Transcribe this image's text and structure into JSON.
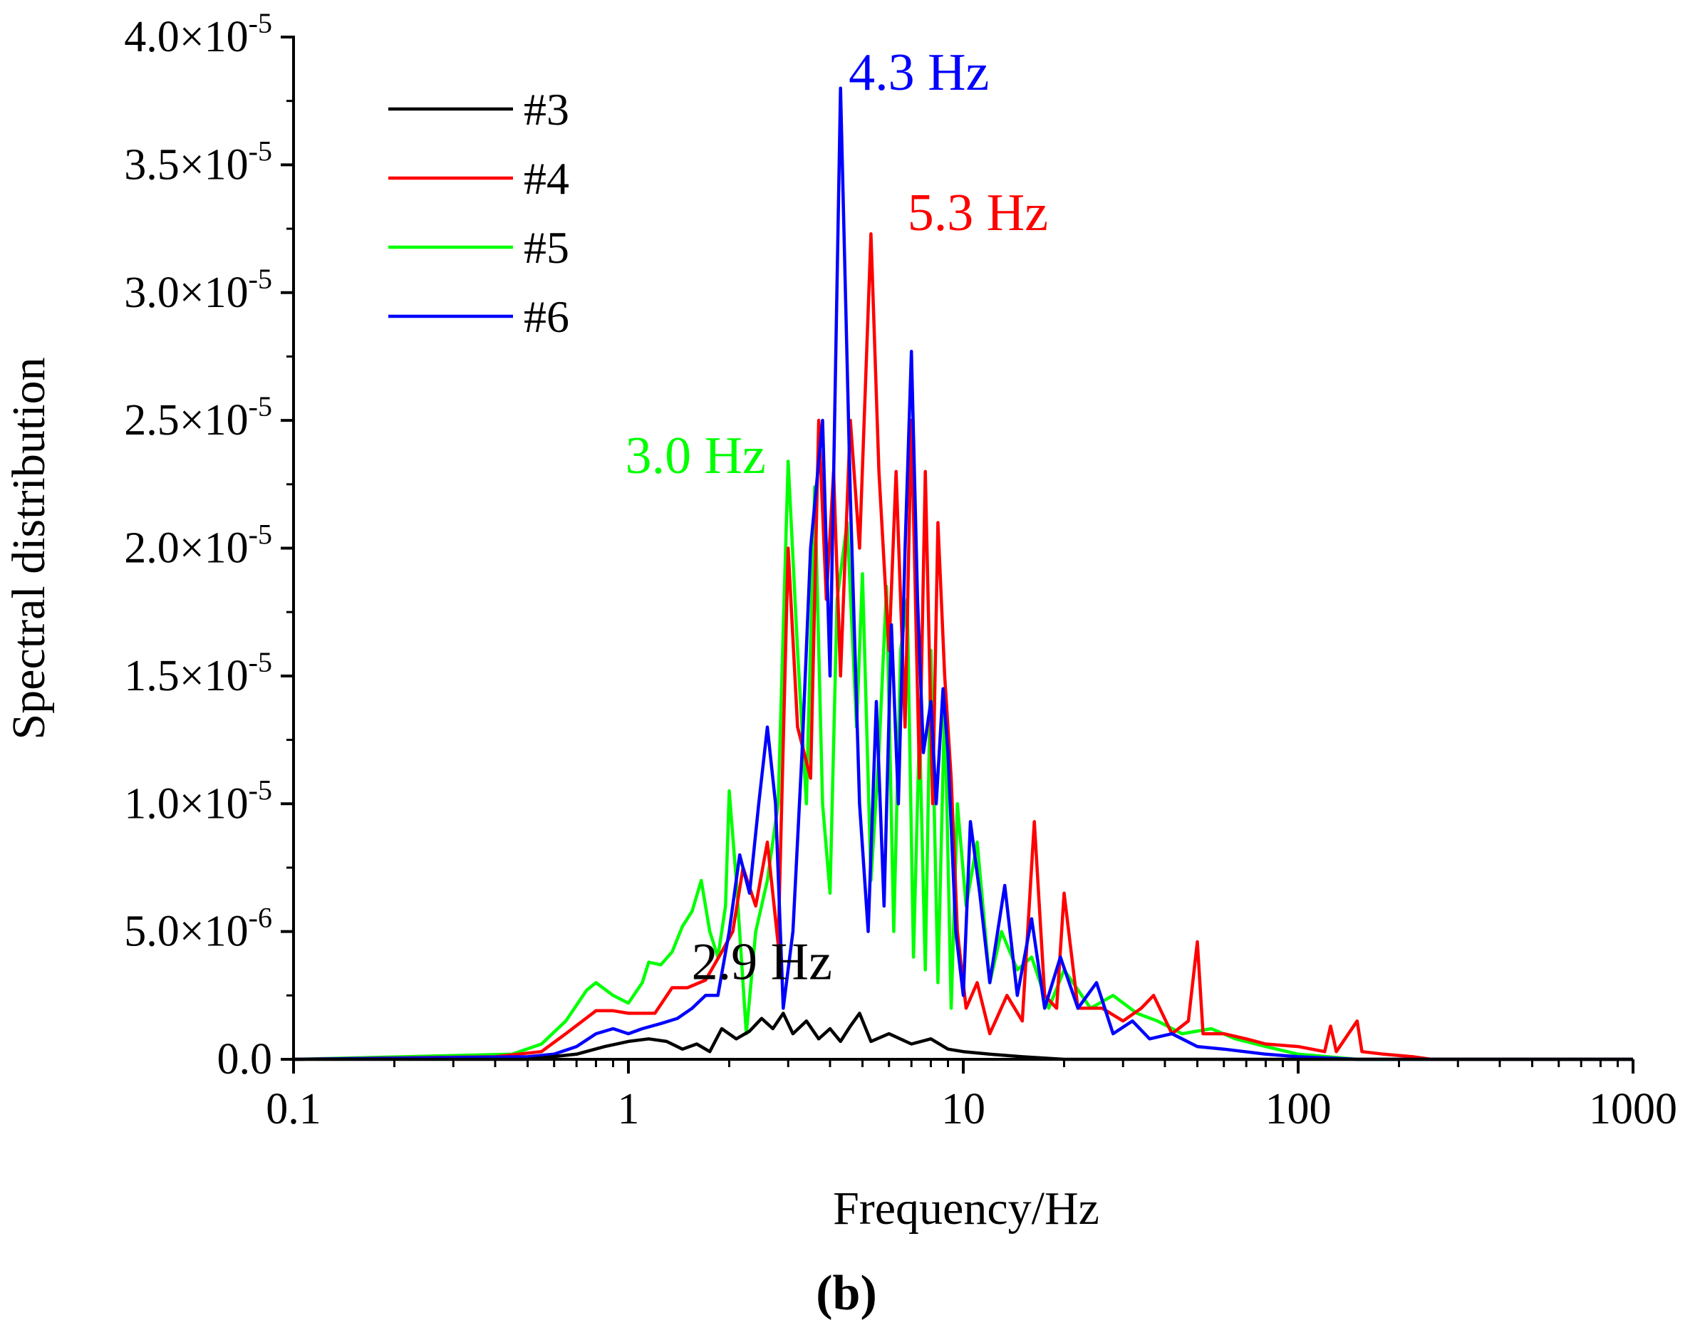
{
  "chart_data": {
    "type": "line",
    "title": "",
    "xlabel": "Frequency/Hz",
    "ylabel": "Spectral distribution",
    "xscale": "log",
    "xlim": [
      0.1,
      1000
    ],
    "ylim": [
      0,
      4e-05
    ],
    "x_ticks": [
      0.1,
      1,
      10,
      100,
      1000
    ],
    "x_tick_labels": [
      "0.1",
      "1",
      "10",
      "100",
      "1000"
    ],
    "y_ticks": [
      0,
      5e-06,
      1e-05,
      1.5e-05,
      2e-05,
      2.5e-05,
      3e-05,
      3.5e-05,
      4e-05
    ],
    "y_tick_labels": [
      {
        "mant": "0.0",
        "exp": ""
      },
      {
        "mant": "5.0×10",
        "exp": "-6"
      },
      {
        "mant": "1.0×10",
        "exp": "-5"
      },
      {
        "mant": "1.5×10",
        "exp": "-5"
      },
      {
        "mant": "2.0×10",
        "exp": "-5"
      },
      {
        "mant": "2.5×10",
        "exp": "-5"
      },
      {
        "mant": "3.0×10",
        "exp": "-5"
      },
      {
        "mant": "3.5×10",
        "exp": "-5"
      },
      {
        "mant": "4.0×10",
        "exp": "-5"
      }
    ],
    "grid": false,
    "legend_position": "top-left",
    "series": [
      {
        "name": "#3",
        "color": "#000000",
        "points": [
          [
            0.1,
            0
          ],
          [
            0.5,
            0
          ],
          [
            0.7,
            2e-07
          ],
          [
            0.85,
            5e-07
          ],
          [
            1.0,
            7e-07
          ],
          [
            1.15,
            8e-07
          ],
          [
            1.3,
            7e-07
          ],
          [
            1.45,
            4e-07
          ],
          [
            1.6,
            6e-07
          ],
          [
            1.75,
            3e-07
          ],
          [
            1.9,
            1.2e-06
          ],
          [
            2.1,
            8e-07
          ],
          [
            2.3,
            1.1e-06
          ],
          [
            2.5,
            1.6e-06
          ],
          [
            2.7,
            1.2e-06
          ],
          [
            2.9,
            1.8e-06
          ],
          [
            3.1,
            1e-06
          ],
          [
            3.4,
            1.5e-06
          ],
          [
            3.7,
            8e-07
          ],
          [
            4.0,
            1.2e-06
          ],
          [
            4.3,
            7e-07
          ],
          [
            4.6,
            1.3e-06
          ],
          [
            4.9,
            1.8e-06
          ],
          [
            5.3,
            7e-07
          ],
          [
            6.0,
            1e-06
          ],
          [
            7.0,
            6e-07
          ],
          [
            8.0,
            8e-07
          ],
          [
            9.0,
            4e-07
          ],
          [
            10,
            3e-07
          ],
          [
            12,
            2e-07
          ],
          [
            15,
            1e-07
          ],
          [
            20,
            0
          ],
          [
            1000,
            0
          ]
        ],
        "peak_annotation": "2.9 Hz"
      },
      {
        "name": "#4",
        "color": "#ff0000",
        "points": [
          [
            0.1,
            0
          ],
          [
            0.4,
            1e-07
          ],
          [
            0.55,
            3e-07
          ],
          [
            0.65,
            1e-06
          ],
          [
            0.8,
            1.9e-06
          ],
          [
            0.9,
            1.9e-06
          ],
          [
            1.0,
            1.8e-06
          ],
          [
            1.2,
            1.8e-06
          ],
          [
            1.35,
            2.8e-06
          ],
          [
            1.5,
            2.8e-06
          ],
          [
            1.7,
            3.1e-06
          ],
          [
            1.9,
            4.2e-06
          ],
          [
            2.05,
            5e-06
          ],
          [
            2.2,
            7.5e-06
          ],
          [
            2.4,
            6e-06
          ],
          [
            2.6,
            8.5e-06
          ],
          [
            2.8,
            4.5e-06
          ],
          [
            3.0,
            2e-05
          ],
          [
            3.2,
            1.3e-05
          ],
          [
            3.5,
            1.1e-05
          ],
          [
            3.7,
            2.5e-05
          ],
          [
            3.9,
            1.8e-05
          ],
          [
            4.1,
            2.3e-05
          ],
          [
            4.3,
            1.5e-05
          ],
          [
            4.6,
            2.5e-05
          ],
          [
            4.9,
            2e-05
          ],
          [
            5.3,
            3.23e-05
          ],
          [
            5.6,
            2.3e-05
          ],
          [
            6.0,
            1.6e-05
          ],
          [
            6.3,
            2.3e-05
          ],
          [
            6.7,
            1.3e-05
          ],
          [
            7.0,
            2.5e-05
          ],
          [
            7.4,
            1.1e-05
          ],
          [
            7.7,
            2.3e-05
          ],
          [
            8.1,
            1e-05
          ],
          [
            8.4,
            2.1e-05
          ],
          [
            8.8,
            1.5e-05
          ],
          [
            9.2,
            1.1e-05
          ],
          [
            9.6,
            5e-06
          ],
          [
            10.2,
            2e-06
          ],
          [
            11,
            3e-06
          ],
          [
            12,
            1e-06
          ],
          [
            13.5,
            2.5e-06
          ],
          [
            15,
            1.5e-06
          ],
          [
            16.3,
            9.3e-06
          ],
          [
            17.5,
            2.5e-06
          ],
          [
            19,
            2e-06
          ],
          [
            20,
            6.5e-06
          ],
          [
            22,
            2e-06
          ],
          [
            26,
            2e-06
          ],
          [
            30,
            1.5e-06
          ],
          [
            34,
            2e-06
          ],
          [
            37,
            2.5e-06
          ],
          [
            42,
            1e-06
          ],
          [
            47,
            1.5e-06
          ],
          [
            50,
            4.6e-06
          ],
          [
            52,
            1e-06
          ],
          [
            60,
            1e-06
          ],
          [
            70,
            8e-07
          ],
          [
            80,
            6e-07
          ],
          [
            100,
            5e-07
          ],
          [
            120,
            3e-07
          ],
          [
            125,
            1.3e-06
          ],
          [
            130,
            3e-07
          ],
          [
            150,
            1.5e-06
          ],
          [
            155,
            3e-07
          ],
          [
            180,
            2e-07
          ],
          [
            220,
            1e-07
          ],
          [
            250,
            0
          ],
          [
            1000,
            0
          ]
        ],
        "peak_annotation": "5.3 Hz"
      },
      {
        "name": "#5",
        "color": "#00ff00",
        "points": [
          [
            0.1,
            0
          ],
          [
            0.45,
            2e-07
          ],
          [
            0.55,
            6e-07
          ],
          [
            0.65,
            1.5e-06
          ],
          [
            0.75,
            2.7e-06
          ],
          [
            0.8,
            3e-06
          ],
          [
            0.9,
            2.5e-06
          ],
          [
            1.0,
            2.2e-06
          ],
          [
            1.1,
            3e-06
          ],
          [
            1.15,
            3.8e-06
          ],
          [
            1.25,
            3.7e-06
          ],
          [
            1.35,
            4.2e-06
          ],
          [
            1.45,
            5.2e-06
          ],
          [
            1.55,
            5.8e-06
          ],
          [
            1.65,
            7e-06
          ],
          [
            1.75,
            5e-06
          ],
          [
            1.85,
            4e-06
          ],
          [
            1.95,
            6e-06
          ],
          [
            2.0,
            1.05e-05
          ],
          [
            2.1,
            7e-06
          ],
          [
            2.25,
            1e-06
          ],
          [
            2.4,
            5e-06
          ],
          [
            2.6,
            7e-06
          ],
          [
            2.8,
            1e-05
          ],
          [
            3.0,
            2.34e-05
          ],
          [
            3.2,
            1.6e-05
          ],
          [
            3.4,
            1e-05
          ],
          [
            3.6,
            2.24e-05
          ],
          [
            3.8,
            1e-05
          ],
          [
            4.0,
            6.5e-06
          ],
          [
            4.2,
            1.8e-05
          ],
          [
            4.5,
            2.1e-05
          ],
          [
            4.8,
            1.3e-05
          ],
          [
            5.0,
            1.9e-05
          ],
          [
            5.3,
            7e-06
          ],
          [
            5.6,
            1.2e-05
          ],
          [
            5.9,
            1.85e-05
          ],
          [
            6.2,
            5e-06
          ],
          [
            6.5,
            1.6e-05
          ],
          [
            6.8,
            1.8e-05
          ],
          [
            7.1,
            4e-06
          ],
          [
            7.4,
            1.3e-05
          ],
          [
            7.7,
            3.5e-06
          ],
          [
            8.0,
            1.6e-05
          ],
          [
            8.4,
            3e-06
          ],
          [
            8.8,
            1.4e-05
          ],
          [
            9.2,
            2e-06
          ],
          [
            9.6,
            1e-05
          ],
          [
            10.2,
            6e-06
          ],
          [
            11,
            8.5e-06
          ],
          [
            12,
            3e-06
          ],
          [
            13,
            5e-06
          ],
          [
            14.5,
            3.5e-06
          ],
          [
            16,
            4e-06
          ],
          [
            18,
            2e-06
          ],
          [
            20,
            3.5e-06
          ],
          [
            24,
            2e-06
          ],
          [
            28,
            2.5e-06
          ],
          [
            33,
            1.8e-06
          ],
          [
            38,
            1.5e-06
          ],
          [
            45,
            1e-06
          ],
          [
            55,
            1.2e-06
          ],
          [
            65,
            8e-07
          ],
          [
            80,
            5e-07
          ],
          [
            100,
            2e-07
          ],
          [
            150,
            0
          ],
          [
            1000,
            0
          ]
        ],
        "peak_annotation": "3.0 Hz"
      },
      {
        "name": "#6",
        "color": "#0000ff",
        "points": [
          [
            0.1,
            0
          ],
          [
            0.5,
            1e-07
          ],
          [
            0.6,
            2e-07
          ],
          [
            0.7,
            5e-07
          ],
          [
            0.8,
            1e-06
          ],
          [
            0.9,
            1.2e-06
          ],
          [
            1.0,
            1e-06
          ],
          [
            1.1,
            1.2e-06
          ],
          [
            1.25,
            1.4e-06
          ],
          [
            1.4,
            1.6e-06
          ],
          [
            1.55,
            2e-06
          ],
          [
            1.7,
            2.5e-06
          ],
          [
            1.85,
            2.5e-06
          ],
          [
            2.0,
            5e-06
          ],
          [
            2.15,
            8e-06
          ],
          [
            2.3,
            6.5e-06
          ],
          [
            2.45,
            1e-05
          ],
          [
            2.6,
            1.3e-05
          ],
          [
            2.75,
            1e-05
          ],
          [
            2.9,
            2e-06
          ],
          [
            3.1,
            5e-06
          ],
          [
            3.3,
            1.2e-05
          ],
          [
            3.5,
            2e-05
          ],
          [
            3.8,
            2.5e-05
          ],
          [
            4.0,
            1.5e-05
          ],
          [
            4.3,
            3.8e-05
          ],
          [
            4.6,
            2.2e-05
          ],
          [
            4.9,
            1e-05
          ],
          [
            5.2,
            5e-06
          ],
          [
            5.5,
            1.4e-05
          ],
          [
            5.8,
            6e-06
          ],
          [
            6.1,
            1.7e-05
          ],
          [
            6.4,
            1e-05
          ],
          [
            6.7,
            2e-05
          ],
          [
            7.0,
            2.77e-05
          ],
          [
            7.3,
            1.8e-05
          ],
          [
            7.6,
            1.2e-05
          ],
          [
            8.0,
            1.4e-05
          ],
          [
            8.3,
            1e-05
          ],
          [
            8.7,
            1.45e-05
          ],
          [
            9.0,
            1.2e-05
          ],
          [
            9.5,
            5e-06
          ],
          [
            10.0,
            2.5e-06
          ],
          [
            10.5,
            9.3e-06
          ],
          [
            11.2,
            6.5e-06
          ],
          [
            12,
            3e-06
          ],
          [
            13.3,
            6.8e-06
          ],
          [
            14.5,
            2.5e-06
          ],
          [
            16,
            5.5e-06
          ],
          [
            17.5,
            2e-06
          ],
          [
            19.5,
            4e-06
          ],
          [
            22,
            2e-06
          ],
          [
            25,
            3e-06
          ],
          [
            28,
            1e-06
          ],
          [
            32,
            1.5e-06
          ],
          [
            36,
            8e-07
          ],
          [
            42,
            1e-06
          ],
          [
            50,
            5e-07
          ],
          [
            60,
            4e-07
          ],
          [
            80,
            2e-07
          ],
          [
            100,
            1e-07
          ],
          [
            150,
            0
          ],
          [
            1000,
            0
          ]
        ],
        "peak_annotation": "4.3 Hz"
      }
    ],
    "annotations": [
      {
        "text": "4.3 Hz",
        "x": 4.3,
        "y": 3.85e-05,
        "color": "#0000ff"
      },
      {
        "text": "5.3 Hz",
        "x": 5.3,
        "y": 3.3e-05,
        "color": "#ff0000"
      },
      {
        "text": "3.0 Hz",
        "x": 3.0,
        "y": 2.35e-05,
        "color": "#00ff00"
      },
      {
        "text": "2.9 Hz",
        "x": 2.9,
        "y": 3.7e-06,
        "color": "#000000"
      }
    ],
    "caption": "(b)"
  }
}
